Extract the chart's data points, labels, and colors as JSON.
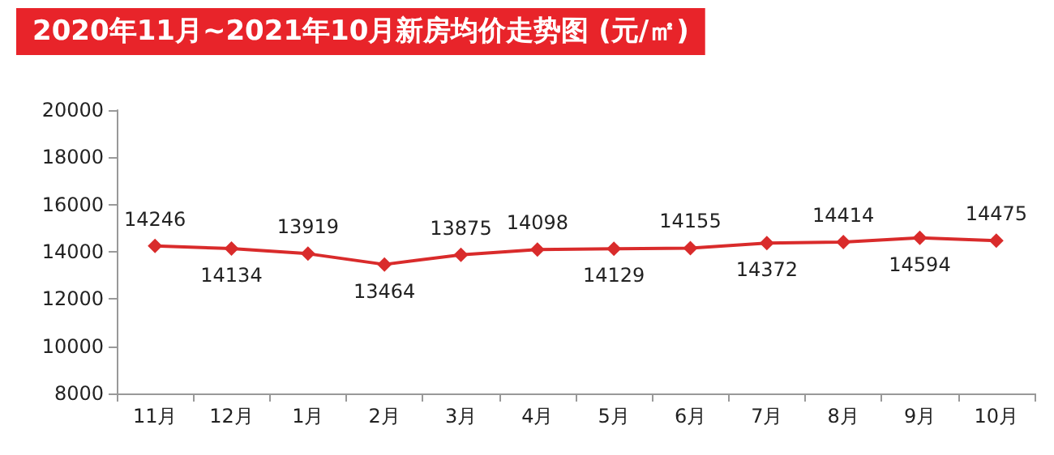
{
  "chart_data": {
    "type": "line",
    "title": "2020年11月~2021年10月新房均价走势图 (元/㎡)",
    "categories": [
      "11月",
      "12月",
      "1月",
      "2月",
      "3月",
      "4月",
      "5月",
      "6月",
      "7月",
      "8月",
      "9月",
      "10月"
    ],
    "series": [
      {
        "color": "#d92b2b",
        "values": [
          14246,
          14134,
          13919,
          13464,
          13875,
          14098,
          14129,
          14155,
          14372,
          14414,
          14594,
          14475
        ]
      }
    ],
    "ylim": [
      8000,
      20000
    ],
    "yticks": [
      8000,
      10000,
      12000,
      14000,
      16000,
      18000,
      20000
    ],
    "grid": false,
    "marker": "diamond",
    "line_style": "solid",
    "data_labels": true
  }
}
